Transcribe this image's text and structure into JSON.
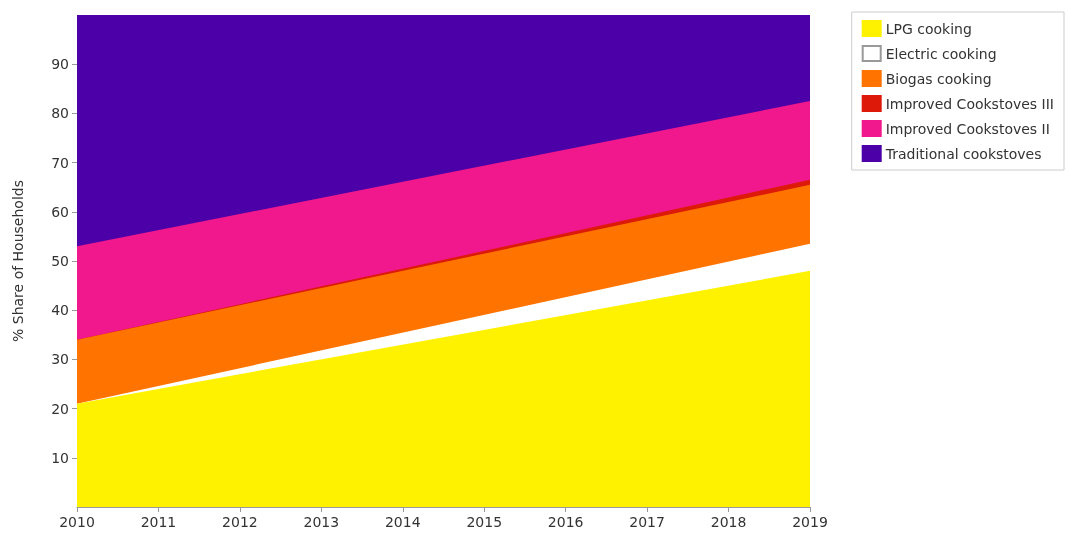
{
  "chart_data": {
    "type": "area",
    "stacked": true,
    "ylabel": "% Share of Households",
    "x": [
      2010,
      2019
    ],
    "series": [
      {
        "name": "LPG cooking",
        "color": "#fff200",
        "values": [
          21,
          48
        ]
      },
      {
        "name": "Electric cooking",
        "color": "#ffffff",
        "values": [
          0,
          5.5
        ]
      },
      {
        "name": "Biogas cooking",
        "color": "#ff7300",
        "values": [
          13,
          12
        ]
      },
      {
        "name": "Improved Cookstoves III",
        "color": "#dd1a0a",
        "values": [
          0,
          1
        ]
      },
      {
        "name": "Improved Cookstoves II",
        "color": "#f0188c",
        "values": [
          19,
          16
        ]
      },
      {
        "name": "Traditional cookstoves",
        "color": "#4b00a8",
        "values": [
          47,
          17.5
        ]
      }
    ],
    "xlim": [
      2010,
      2019
    ],
    "xticks": [
      2010,
      2011,
      2012,
      2013,
      2014,
      2015,
      2016,
      2017,
      2018,
      2019
    ],
    "ylim": [
      0,
      100
    ],
    "yticks": [
      10,
      20,
      30,
      40,
      50,
      60,
      70,
      80,
      90
    ],
    "grid": false,
    "legend": "top right"
  }
}
